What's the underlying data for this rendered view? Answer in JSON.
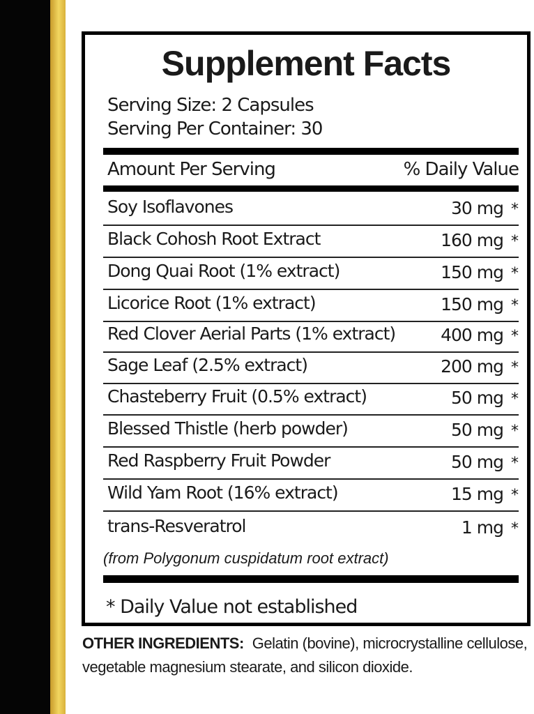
{
  "title": "Supplement Facts",
  "serving_size": "Serving Size: 2 Capsules",
  "servings_per_container": "Serving Per Container: 30",
  "header": {
    "amount": "Amount Per Serving",
    "dv": "% Daily Value"
  },
  "rows": [
    {
      "name": "Soy Isoflavones",
      "amount": "30 mg",
      "dv": "*"
    },
    {
      "name": "Black Cohosh Root Extract",
      "amount": "160 mg",
      "dv": "*"
    },
    {
      "name": "Dong Quai Root (1% extract)",
      "amount": "150 mg",
      "dv": "*"
    },
    {
      "name": "Licorice Root (1% extract)",
      "amount": "150 mg",
      "dv": "*"
    },
    {
      "name": "Red Clover Aerial Parts (1% extract)",
      "amount": "400 mg",
      "dv": "*"
    },
    {
      "name": "Sage Leaf (2.5% extract)",
      "amount": "200 mg",
      "dv": "*"
    },
    {
      "name": "Chasteberry Fruit (0.5% extract)",
      "amount": "50 mg",
      "dv": "*"
    },
    {
      "name": "Blessed Thistle (herb powder)",
      "amount": "50 mg",
      "dv": "*"
    },
    {
      "name": "Red Raspberry Fruit Powder",
      "amount": "50 mg",
      "dv": "*"
    },
    {
      "name": "Wild Yam Root (16% extract)",
      "amount": "15 mg",
      "dv": "*"
    },
    {
      "name": "trans-Resveratrol",
      "amount": "1 mg",
      "dv": "*"
    }
  ],
  "resveratrol_note": "(from Polygonum cuspidatum root extract)",
  "footnote": "* Daily Value not established",
  "other_ingredients": {
    "label": "OTHER INGREDIENTS:",
    "text": "Gelatin (bovine), microcrystalline cellulose, vegetable magnesium stearate, and silicon dioxide."
  },
  "colors": {
    "stripe_black": "#050505",
    "stripe_gold": "#e8c64d"
  }
}
